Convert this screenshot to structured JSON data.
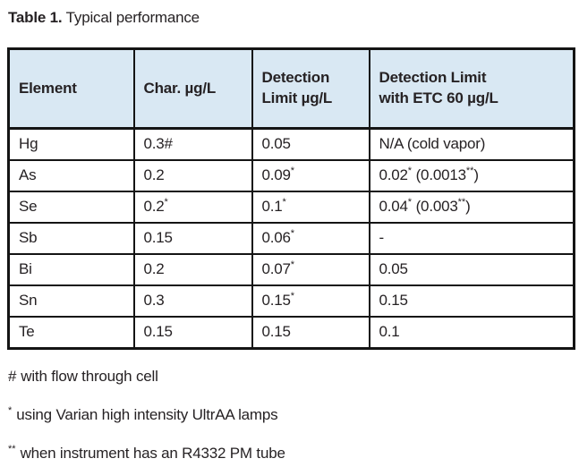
{
  "title": {
    "prefix": "Table 1.",
    "text": " Typical performance"
  },
  "table": {
    "header_bg": "#d9e8f3",
    "border_color": "#141414",
    "columns": [
      "Element",
      "Char. µg/L",
      "Detection\nLimit µg/L",
      "Detection Limit\nwith ETC 60 µg/L"
    ],
    "rows": [
      [
        "Hg",
        "0.3#",
        "0.05",
        "N/A (cold vapor)"
      ],
      [
        "As",
        "0.2",
        "0.09*",
        "0.02* (0.0013**)"
      ],
      [
        "Se",
        "0.2*",
        "0.1*",
        "0.04* (0.003**)"
      ],
      [
        "Sb",
        "0.15",
        "0.06*",
        "-"
      ],
      [
        "Bi",
        "0.2",
        "0.07*",
        "0.05"
      ],
      [
        "Sn",
        "0.3",
        "0.15*",
        "0.15"
      ],
      [
        "Te",
        "0.15",
        "0.15",
        "0.1"
      ]
    ]
  },
  "footnotes": [
    {
      "marker": "#",
      "superscript": false,
      "text": "with flow through cell"
    },
    {
      "marker": "*",
      "superscript": true,
      "text": "using Varian high intensity UltrAA lamps"
    },
    {
      "marker": "**",
      "superscript": true,
      "text": "when instrument has an R4332 PM tube"
    }
  ]
}
